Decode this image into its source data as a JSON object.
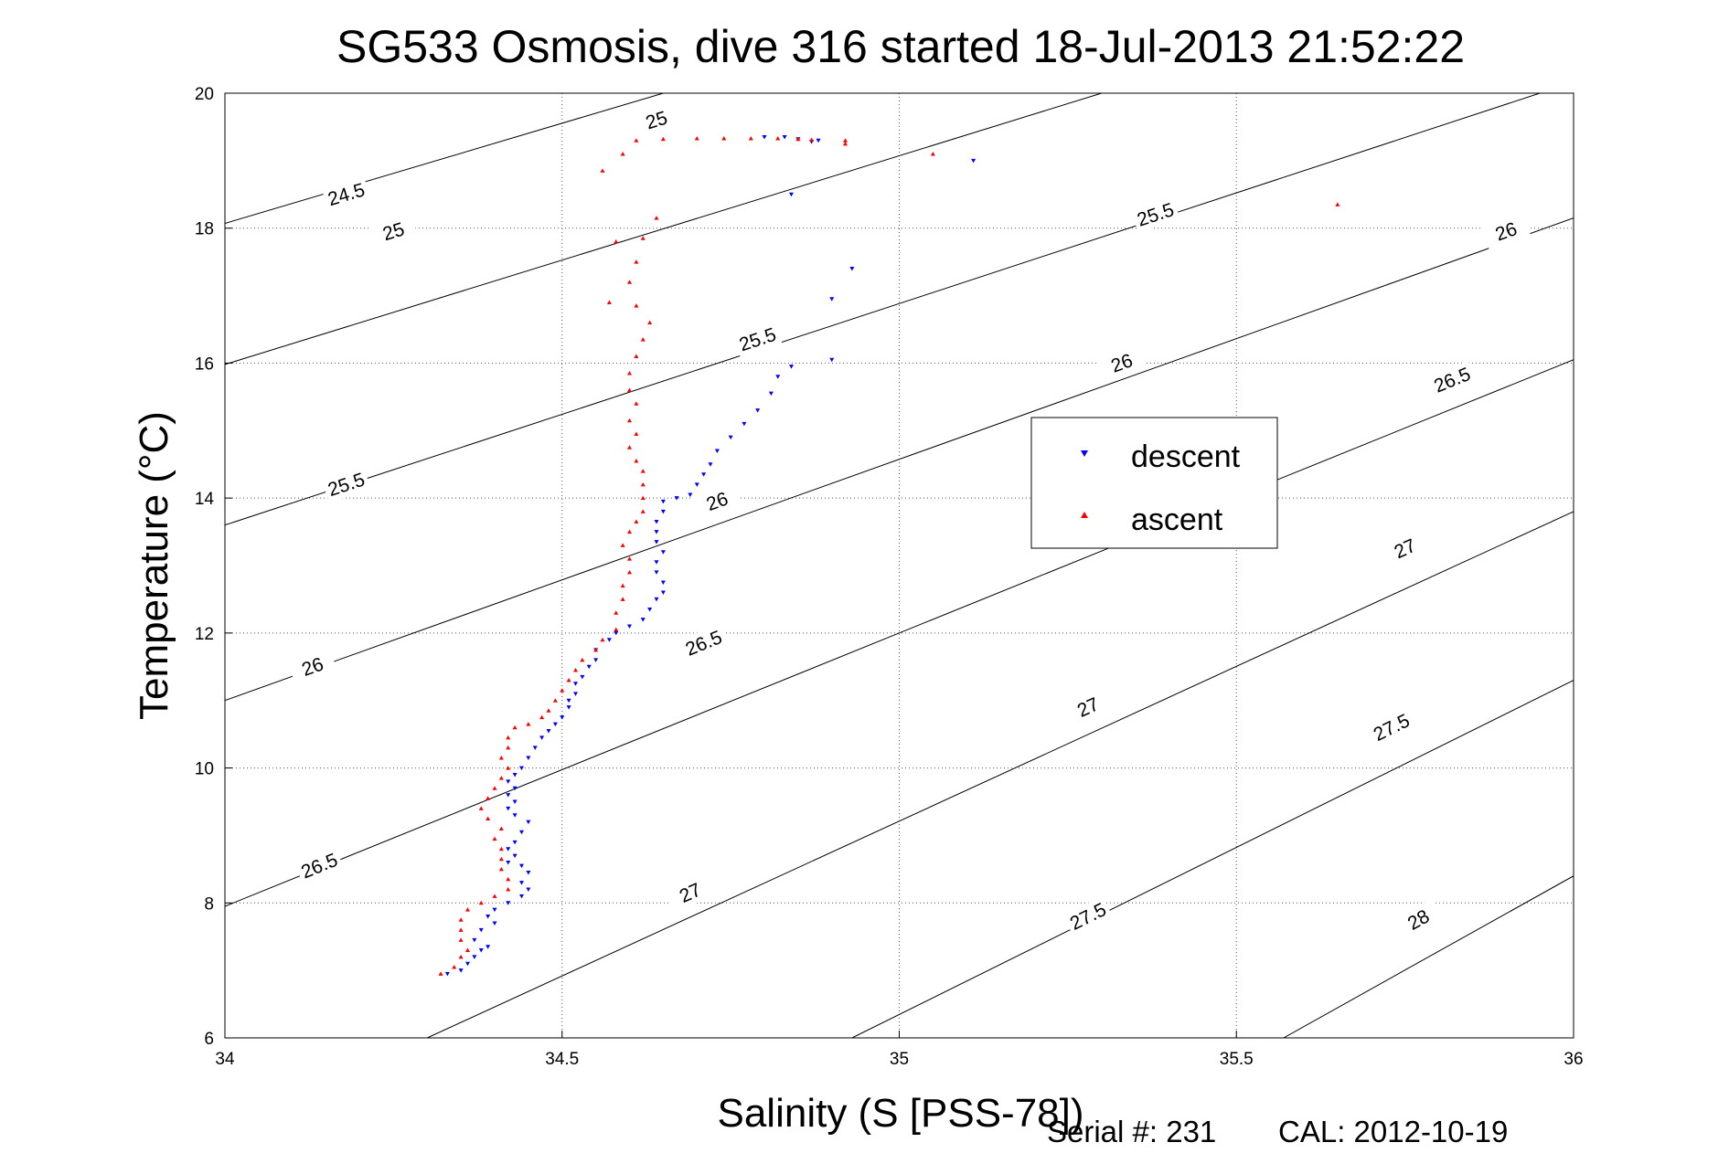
{
  "chart_data": {
    "type": "scatter",
    "title": "SG533 Osmosis, dive 316 started 18-Jul-2013 21:52:22",
    "xlabel": "Salinity (S [PSS-78])",
    "ylabel": "Temperature (°C)",
    "xlim": [
      34,
      36
    ],
    "ylim": [
      6,
      20
    ],
    "x_ticks": [
      "34",
      "34.5",
      "35",
      "35.5",
      "36"
    ],
    "y_ticks": [
      "6",
      "8",
      "10",
      "12",
      "14",
      "16",
      "18",
      "20"
    ],
    "grid": true,
    "legend_position": "right-center",
    "series": [
      {
        "name": "descent",
        "color": "#0000ff",
        "marker": "triangle-down",
        "points": [
          [
            34.33,
            6.95
          ],
          [
            34.35,
            7.0
          ],
          [
            34.36,
            7.1
          ],
          [
            34.37,
            7.2
          ],
          [
            34.38,
            7.3
          ],
          [
            34.39,
            7.35
          ],
          [
            34.37,
            7.45
          ],
          [
            34.38,
            7.6
          ],
          [
            34.4,
            7.7
          ],
          [
            34.39,
            7.8
          ],
          [
            34.4,
            7.9
          ],
          [
            34.42,
            8.0
          ],
          [
            34.44,
            8.1
          ],
          [
            34.45,
            8.2
          ],
          [
            34.44,
            8.3
          ],
          [
            34.45,
            8.45
          ],
          [
            34.44,
            8.55
          ],
          [
            34.42,
            8.6
          ],
          [
            34.43,
            8.7
          ],
          [
            34.42,
            8.8
          ],
          [
            34.43,
            8.9
          ],
          [
            34.44,
            9.05
          ],
          [
            34.45,
            9.2
          ],
          [
            34.43,
            9.3
          ],
          [
            34.42,
            9.4
          ],
          [
            34.43,
            9.5
          ],
          [
            34.42,
            9.6
          ],
          [
            34.43,
            9.7
          ],
          [
            34.42,
            9.8
          ],
          [
            34.43,
            9.9
          ],
          [
            34.44,
            10.0
          ],
          [
            34.45,
            10.15
          ],
          [
            34.46,
            10.3
          ],
          [
            34.47,
            10.45
          ],
          [
            34.48,
            10.55
          ],
          [
            34.49,
            10.65
          ],
          [
            34.5,
            10.75
          ],
          [
            34.51,
            10.9
          ],
          [
            34.51,
            11.0
          ],
          [
            34.52,
            11.1
          ],
          [
            34.52,
            11.25
          ],
          [
            34.53,
            11.35
          ],
          [
            34.54,
            11.5
          ],
          [
            34.55,
            11.6
          ],
          [
            34.55,
            11.75
          ],
          [
            34.57,
            11.9
          ],
          [
            34.58,
            12.0
          ],
          [
            34.6,
            12.1
          ],
          [
            34.62,
            12.2
          ],
          [
            34.63,
            12.35
          ],
          [
            34.64,
            12.5
          ],
          [
            34.65,
            12.6
          ],
          [
            34.65,
            12.75
          ],
          [
            34.64,
            12.9
          ],
          [
            34.64,
            13.05
          ],
          [
            34.65,
            13.2
          ],
          [
            34.64,
            13.35
          ],
          [
            34.64,
            13.5
          ],
          [
            34.64,
            13.65
          ],
          [
            34.65,
            13.8
          ],
          [
            34.65,
            13.95
          ],
          [
            34.67,
            14.0
          ],
          [
            34.69,
            14.05
          ],
          [
            34.7,
            14.2
          ],
          [
            34.71,
            14.35
          ],
          [
            34.72,
            14.5
          ],
          [
            34.73,
            14.7
          ],
          [
            34.75,
            14.9
          ],
          [
            34.77,
            15.1
          ],
          [
            34.79,
            15.3
          ],
          [
            34.81,
            15.55
          ],
          [
            34.82,
            15.8
          ],
          [
            34.84,
            15.95
          ],
          [
            34.9,
            16.05
          ],
          [
            34.9,
            16.95
          ],
          [
            34.93,
            17.4
          ],
          [
            34.84,
            18.5
          ],
          [
            34.8,
            19.35
          ],
          [
            34.83,
            19.35
          ],
          [
            34.85,
            19.32
          ],
          [
            34.88,
            19.3
          ],
          [
            34.87,
            19.28
          ],
          [
            35.11,
            19.0
          ]
        ]
      },
      {
        "name": "ascent",
        "color": "#ff0000",
        "marker": "triangle-up",
        "points": [
          [
            34.32,
            6.95
          ],
          [
            34.34,
            7.05
          ],
          [
            34.35,
            7.2
          ],
          [
            34.36,
            7.3
          ],
          [
            34.35,
            7.45
          ],
          [
            34.35,
            7.6
          ],
          [
            34.35,
            7.75
          ],
          [
            34.36,
            7.9
          ],
          [
            34.38,
            8.0
          ],
          [
            34.4,
            8.1
          ],
          [
            34.42,
            8.2
          ],
          [
            34.42,
            8.35
          ],
          [
            34.41,
            8.5
          ],
          [
            34.41,
            8.65
          ],
          [
            34.41,
            8.8
          ],
          [
            34.4,
            8.95
          ],
          [
            34.41,
            9.1
          ],
          [
            34.39,
            9.25
          ],
          [
            34.38,
            9.4
          ],
          [
            34.39,
            9.55
          ],
          [
            34.4,
            9.7
          ],
          [
            34.41,
            9.85
          ],
          [
            34.42,
            10.0
          ],
          [
            34.41,
            10.15
          ],
          [
            34.42,
            10.3
          ],
          [
            34.42,
            10.45
          ],
          [
            34.43,
            10.6
          ],
          [
            34.45,
            10.65
          ],
          [
            34.47,
            10.75
          ],
          [
            34.48,
            10.85
          ],
          [
            34.49,
            11.0
          ],
          [
            34.5,
            11.15
          ],
          [
            34.51,
            11.3
          ],
          [
            34.52,
            11.45
          ],
          [
            34.53,
            11.6
          ],
          [
            34.55,
            11.75
          ],
          [
            34.56,
            11.9
          ],
          [
            34.58,
            12.05
          ],
          [
            34.58,
            12.3
          ],
          [
            34.59,
            12.5
          ],
          [
            34.59,
            12.7
          ],
          [
            34.6,
            12.9
          ],
          [
            34.6,
            13.1
          ],
          [
            34.59,
            13.3
          ],
          [
            34.6,
            13.5
          ],
          [
            34.61,
            13.65
          ],
          [
            34.62,
            13.8
          ],
          [
            34.62,
            14.0
          ],
          [
            34.62,
            14.2
          ],
          [
            34.62,
            14.4
          ],
          [
            34.61,
            14.55
          ],
          [
            34.6,
            14.75
          ],
          [
            34.61,
            14.95
          ],
          [
            34.6,
            15.15
          ],
          [
            34.61,
            15.4
          ],
          [
            34.6,
            15.6
          ],
          [
            34.6,
            15.85
          ],
          [
            34.61,
            16.1
          ],
          [
            34.62,
            16.35
          ],
          [
            34.63,
            16.6
          ],
          [
            34.61,
            16.85
          ],
          [
            34.57,
            16.9
          ],
          [
            34.6,
            17.2
          ],
          [
            34.61,
            17.5
          ],
          [
            34.58,
            17.8
          ],
          [
            34.62,
            17.85
          ],
          [
            34.64,
            18.15
          ],
          [
            34.56,
            18.85
          ],
          [
            34.59,
            19.1
          ],
          [
            34.61,
            19.3
          ],
          [
            34.65,
            19.32
          ],
          [
            34.7,
            19.33
          ],
          [
            34.74,
            19.33
          ],
          [
            34.78,
            19.33
          ],
          [
            34.82,
            19.33
          ],
          [
            34.85,
            19.32
          ],
          [
            34.87,
            19.31
          ],
          [
            34.92,
            19.25
          ],
          [
            34.92,
            19.3
          ],
          [
            35.05,
            19.1
          ],
          [
            35.65,
            18.35
          ]
        ]
      }
    ],
    "contour_labels": [
      "24.5",
      "25",
      "25",
      "25.5",
      "25.5",
      "25.5",
      "26",
      "26",
      "26",
      "26",
      "26.5",
      "26.5",
      "26.5",
      "27",
      "27",
      "27",
      "27.5",
      "27.5",
      "28"
    ],
    "legend": [
      "descent",
      "ascent"
    ]
  },
  "footer": {
    "serial": "Serial #: 231",
    "cal": "CAL: 2012-10-19"
  }
}
